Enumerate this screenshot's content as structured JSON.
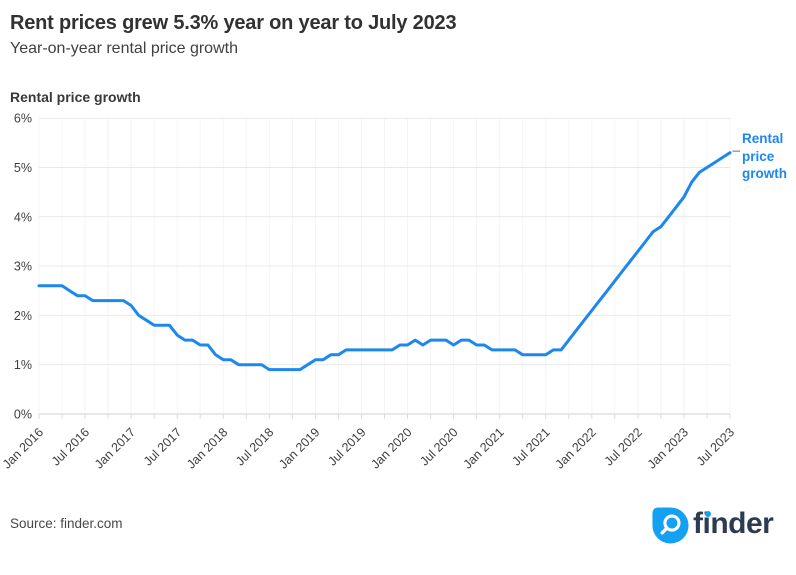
{
  "header": {
    "title": "Rent prices grew 5.3% year on year to July 2023",
    "subtitle": "Year-on-year rental price growth"
  },
  "chart_data": {
    "type": "line",
    "axis_title": "Rental price growth",
    "series_label": "Rental price growth",
    "x_start": "Jan 2016",
    "x_end": "Jul 2023",
    "frequency": "monthly",
    "x_tick_labels": [
      "Jan 2016",
      "Jul 2016",
      "Jan 2017",
      "Jul 2017",
      "Jan 2018",
      "Jul 2018",
      "Jan 2019",
      "Jul 2019",
      "Jan 2020",
      "Jul 2020",
      "Jan 2021",
      "Jul 2021",
      "Jan 2022",
      "Jul 2022",
      "Jan 2023",
      "Jul 2023"
    ],
    "y_tick_labels": [
      "0%",
      "1%",
      "2%",
      "3%",
      "4%",
      "5%",
      "6%"
    ],
    "ylim": [
      0,
      6
    ],
    "grid": true,
    "legend_position": "right-of-line-end",
    "line_color": "#1d87f0",
    "values_pct": [
      2.6,
      2.6,
      2.6,
      2.6,
      2.5,
      2.4,
      2.4,
      2.3,
      2.3,
      2.3,
      2.3,
      2.3,
      2.2,
      2.0,
      1.9,
      1.8,
      1.8,
      1.8,
      1.6,
      1.5,
      1.5,
      1.4,
      1.4,
      1.2,
      1.1,
      1.1,
      1.0,
      1.0,
      1.0,
      1.0,
      0.9,
      0.9,
      0.9,
      0.9,
      0.9,
      1.0,
      1.1,
      1.1,
      1.2,
      1.2,
      1.3,
      1.3,
      1.3,
      1.3,
      1.3,
      1.3,
      1.3,
      1.4,
      1.4,
      1.5,
      1.4,
      1.5,
      1.5,
      1.5,
      1.4,
      1.5,
      1.5,
      1.4,
      1.4,
      1.3,
      1.3,
      1.3,
      1.3,
      1.2,
      1.2,
      1.2,
      1.2,
      1.3,
      1.3,
      1.5,
      1.7,
      1.9,
      2.1,
      2.3,
      2.5,
      2.7,
      2.9,
      3.1,
      3.3,
      3.5,
      3.7,
      3.8,
      4.0,
      4.2,
      4.4,
      4.7,
      4.9,
      5.0,
      5.1,
      5.2,
      5.3
    ]
  },
  "footer": {
    "source": "Source: finder.com",
    "logo_text": "finder"
  },
  "colors": {
    "line_blue": "#1d87f0",
    "logo_blue": "#14a0f3",
    "logo_navy": "#2b3b52"
  }
}
